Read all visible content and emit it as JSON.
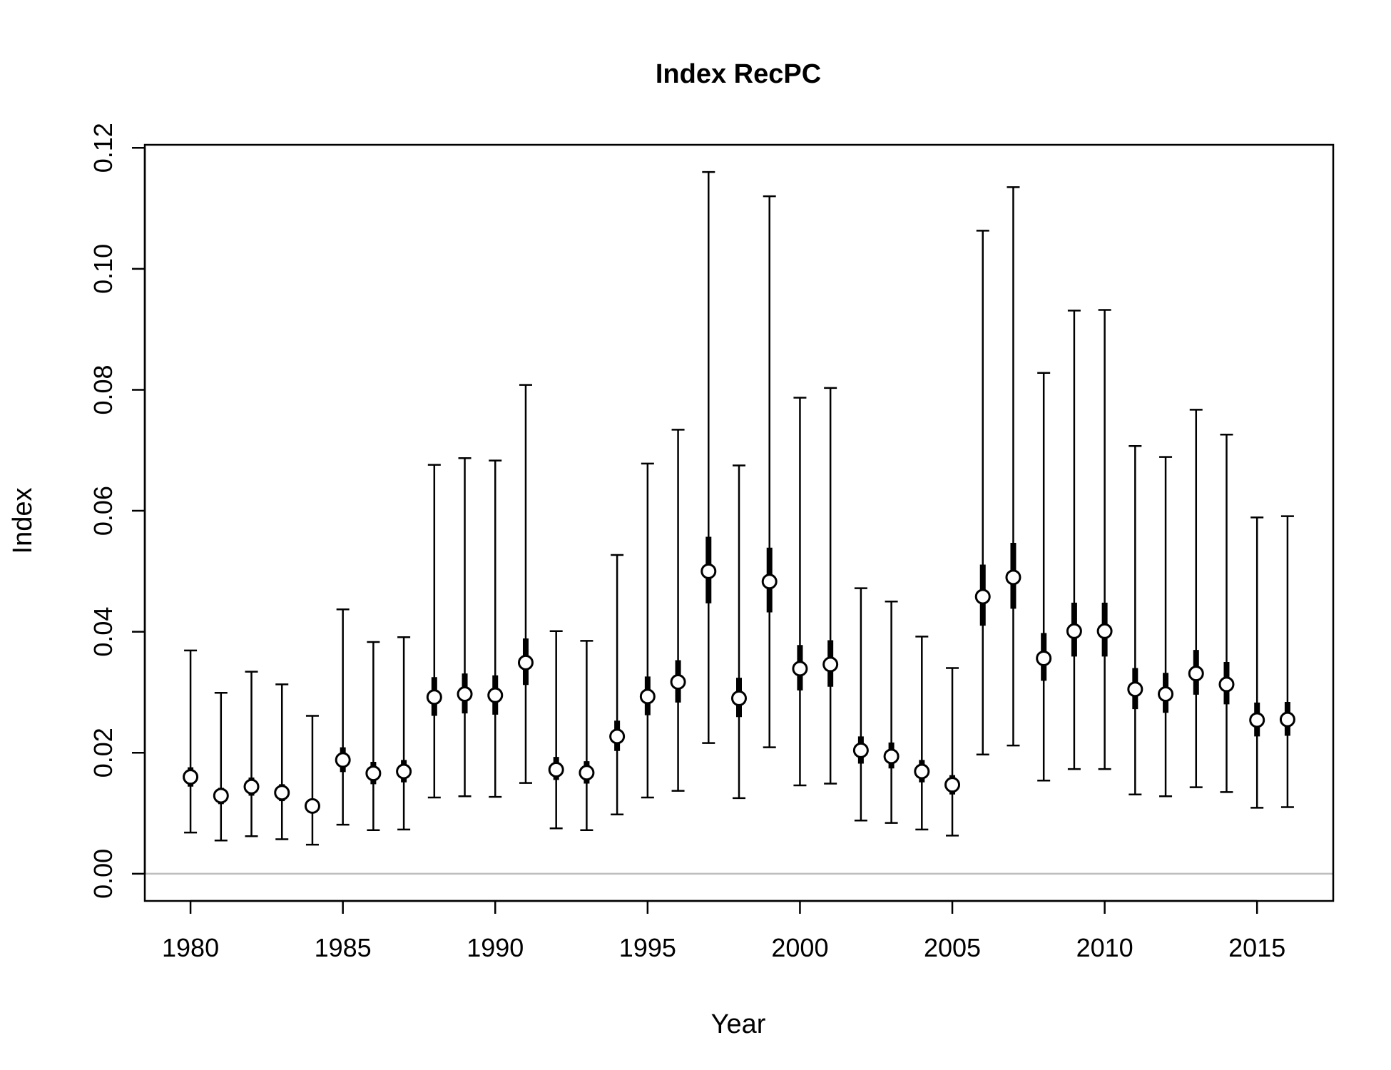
{
  "chart_data": {
    "type": "scatter",
    "title": "Index RecPC",
    "xlabel": "Year",
    "ylabel": "Index",
    "xlim": [
      1978.5,
      2017.5
    ],
    "ylim": [
      -0.0045,
      0.1205
    ],
    "xticks": [
      1980,
      1985,
      1990,
      1995,
      2000,
      2005,
      2010,
      2015
    ],
    "yticks": [
      0.0,
      0.02,
      0.04,
      0.06,
      0.08,
      0.1,
      0.12
    ],
    "ytick_labels": [
      "0.00",
      "0.02",
      "0.04",
      "0.06",
      "0.08",
      "0.10",
      "0.12"
    ],
    "reference_line": 0,
    "colors": {
      "line": "#000000",
      "reference": "#bebebe",
      "point_fill": "#ffffff"
    },
    "points": [
      {
        "year": 1980,
        "value": 0.016,
        "lo": 0.0068,
        "hi": 0.0369,
        "lo_inner": 0.0144,
        "hi_inner": 0.0176
      },
      {
        "year": 1981,
        "value": 0.0129,
        "lo": 0.0055,
        "hi": 0.0299,
        "lo_inner": 0.0115,
        "hi_inner": 0.0142
      },
      {
        "year": 1982,
        "value": 0.0144,
        "lo": 0.0062,
        "hi": 0.0334,
        "lo_inner": 0.0129,
        "hi_inner": 0.0159
      },
      {
        "year": 1983,
        "value": 0.0134,
        "lo": 0.0057,
        "hi": 0.0313,
        "lo_inner": 0.012,
        "hi_inner": 0.0148
      },
      {
        "year": 1984,
        "value": 0.0112,
        "lo": 0.0048,
        "hi": 0.0261,
        "lo_inner": 0.01,
        "hi_inner": 0.0124
      },
      {
        "year": 1985,
        "value": 0.0188,
        "lo": 0.0081,
        "hi": 0.0437,
        "lo_inner": 0.0168,
        "hi_inner": 0.0209
      },
      {
        "year": 1986,
        "value": 0.0166,
        "lo": 0.0072,
        "hi": 0.0383,
        "lo_inner": 0.0148,
        "hi_inner": 0.0185
      },
      {
        "year": 1987,
        "value": 0.0169,
        "lo": 0.0073,
        "hi": 0.0391,
        "lo_inner": 0.0151,
        "hi_inner": 0.0188
      },
      {
        "year": 1988,
        "value": 0.0292,
        "lo": 0.0126,
        "hi": 0.0676,
        "lo_inner": 0.0261,
        "hi_inner": 0.0325
      },
      {
        "year": 1989,
        "value": 0.0297,
        "lo": 0.0128,
        "hi": 0.0687,
        "lo_inner": 0.0265,
        "hi_inner": 0.0331
      },
      {
        "year": 1990,
        "value": 0.0295,
        "lo": 0.0127,
        "hi": 0.0683,
        "lo_inner": 0.0263,
        "hi_inner": 0.0328
      },
      {
        "year": 1991,
        "value": 0.0349,
        "lo": 0.015,
        "hi": 0.0808,
        "lo_inner": 0.0312,
        "hi_inner": 0.0389
      },
      {
        "year": 1992,
        "value": 0.0172,
        "lo": 0.0075,
        "hi": 0.0401,
        "lo_inner": 0.0155,
        "hi_inner": 0.0193
      },
      {
        "year": 1993,
        "value": 0.0167,
        "lo": 0.0072,
        "hi": 0.0385,
        "lo_inner": 0.0149,
        "hi_inner": 0.0186
      },
      {
        "year": 1994,
        "value": 0.0227,
        "lo": 0.0098,
        "hi": 0.0527,
        "lo_inner": 0.0203,
        "hi_inner": 0.0253
      },
      {
        "year": 1995,
        "value": 0.0293,
        "lo": 0.0126,
        "hi": 0.0678,
        "lo_inner": 0.0262,
        "hi_inner": 0.0326
      },
      {
        "year": 1996,
        "value": 0.0317,
        "lo": 0.0137,
        "hi": 0.0734,
        "lo_inner": 0.0283,
        "hi_inner": 0.0353
      },
      {
        "year": 1997,
        "value": 0.05,
        "lo": 0.0216,
        "hi": 0.116,
        "lo_inner": 0.0447,
        "hi_inner": 0.0557
      },
      {
        "year": 1998,
        "value": 0.029,
        "lo": 0.0125,
        "hi": 0.0675,
        "lo_inner": 0.0259,
        "hi_inner": 0.0324
      },
      {
        "year": 1999,
        "value": 0.0483,
        "lo": 0.0209,
        "hi": 0.112,
        "lo_inner": 0.0432,
        "hi_inner": 0.0539
      },
      {
        "year": 2000,
        "value": 0.0339,
        "lo": 0.0146,
        "hi": 0.0787,
        "lo_inner": 0.0303,
        "hi_inner": 0.0378
      },
      {
        "year": 2001,
        "value": 0.0346,
        "lo": 0.0149,
        "hi": 0.0803,
        "lo_inner": 0.0309,
        "hi_inner": 0.0386
      },
      {
        "year": 2002,
        "value": 0.0204,
        "lo": 0.0088,
        "hi": 0.0472,
        "lo_inner": 0.0182,
        "hi_inner": 0.0227
      },
      {
        "year": 2003,
        "value": 0.0194,
        "lo": 0.0084,
        "hi": 0.045,
        "lo_inner": 0.0174,
        "hi_inner": 0.0217
      },
      {
        "year": 2004,
        "value": 0.0169,
        "lo": 0.0073,
        "hi": 0.0392,
        "lo_inner": 0.0151,
        "hi_inner": 0.0188
      },
      {
        "year": 2005,
        "value": 0.0147,
        "lo": 0.0063,
        "hi": 0.034,
        "lo_inner": 0.0131,
        "hi_inner": 0.0163
      },
      {
        "year": 2006,
        "value": 0.0458,
        "lo": 0.0197,
        "hi": 0.1063,
        "lo_inner": 0.041,
        "hi_inner": 0.0511
      },
      {
        "year": 2007,
        "value": 0.049,
        "lo": 0.0212,
        "hi": 0.1135,
        "lo_inner": 0.0438,
        "hi_inner": 0.0547
      },
      {
        "year": 2008,
        "value": 0.0356,
        "lo": 0.0154,
        "hi": 0.0828,
        "lo_inner": 0.0319,
        "hi_inner": 0.0398
      },
      {
        "year": 2009,
        "value": 0.0401,
        "lo": 0.0173,
        "hi": 0.0931,
        "lo_inner": 0.0359,
        "hi_inner": 0.0448
      },
      {
        "year": 2010,
        "value": 0.0401,
        "lo": 0.0173,
        "hi": 0.0932,
        "lo_inner": 0.0359,
        "hi_inner": 0.0448
      },
      {
        "year": 2011,
        "value": 0.0305,
        "lo": 0.0131,
        "hi": 0.0707,
        "lo_inner": 0.0272,
        "hi_inner": 0.034
      },
      {
        "year": 2012,
        "value": 0.0297,
        "lo": 0.0128,
        "hi": 0.0689,
        "lo_inner": 0.0266,
        "hi_inner": 0.0332
      },
      {
        "year": 2013,
        "value": 0.0331,
        "lo": 0.0143,
        "hi": 0.0767,
        "lo_inner": 0.0296,
        "hi_inner": 0.037
      },
      {
        "year": 2014,
        "value": 0.0313,
        "lo": 0.0135,
        "hi": 0.0726,
        "lo_inner": 0.028,
        "hi_inner": 0.035
      },
      {
        "year": 2015,
        "value": 0.0254,
        "lo": 0.0109,
        "hi": 0.0589,
        "lo_inner": 0.0227,
        "hi_inner": 0.0283
      },
      {
        "year": 2016,
        "value": 0.0255,
        "lo": 0.011,
        "hi": 0.0591,
        "lo_inner": 0.0228,
        "hi_inner": 0.0284
      }
    ]
  }
}
